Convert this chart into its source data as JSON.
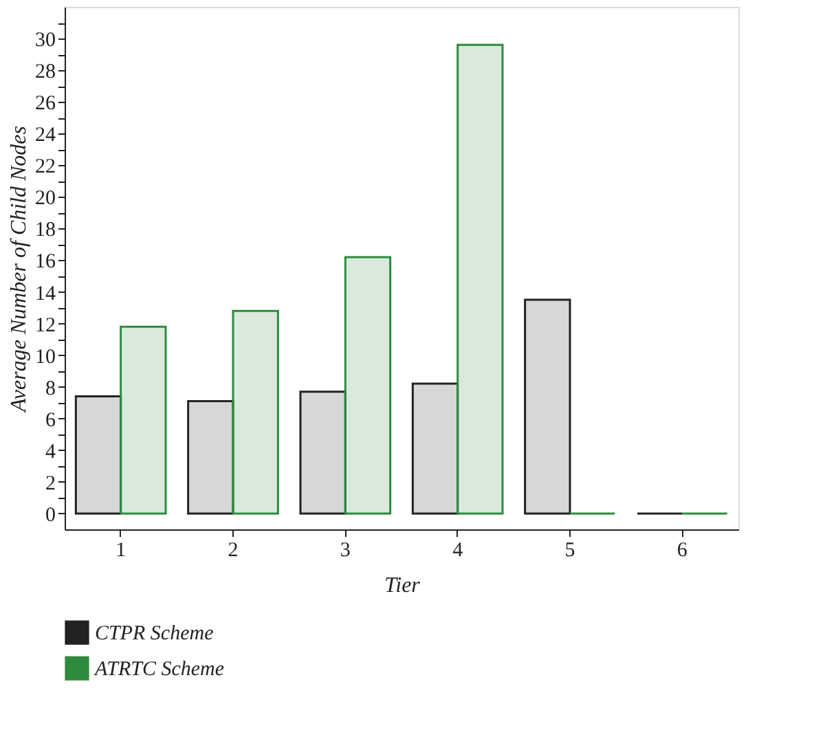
{
  "chart_data": {
    "type": "bar",
    "xlabel": "Tier",
    "ylabel": "Average Number of Child Nodes",
    "categories": [
      "1",
      "2",
      "3",
      "4",
      "5",
      "6"
    ],
    "series": [
      {
        "name": "CTPR Scheme",
        "color": "#222222",
        "values": [
          7.4,
          7.1,
          7.7,
          8.2,
          13.5,
          0
        ]
      },
      {
        "name": "ATRTC Scheme",
        "color": "#2e8b3e",
        "values": [
          11.8,
          12.8,
          16.2,
          29.6,
          0,
          0
        ]
      }
    ],
    "ylim": [
      -1,
      32
    ],
    "yticks": [
      0,
      {
        "value": 1,
        "label": null
      },
      2,
      {
        "value": 3,
        "label": null
      },
      4,
      {
        "value": 5,
        "label": null
      },
      6,
      {
        "value": 7,
        "label": null
      },
      8,
      {
        "value": 9,
        "label": null
      },
      10,
      {
        "value": 11,
        "label": null
      },
      12,
      {
        "value": 13,
        "label": null
      },
      14,
      {
        "value": 15,
        "label": null
      },
      16,
      {
        "value": 17,
        "label": null
      },
      18,
      {
        "value": 19,
        "label": null
      },
      20,
      {
        "value": 21,
        "label": null
      },
      22,
      {
        "value": 23,
        "label": null
      },
      24,
      {
        "value": 25,
        "label": null
      },
      26,
      {
        "value": 27,
        "label": null
      },
      28,
      {
        "value": 29,
        "label": null
      },
      30,
      {
        "value": 31,
        "label": null
      }
    ],
    "grid": false,
    "legend": "bottom left"
  }
}
